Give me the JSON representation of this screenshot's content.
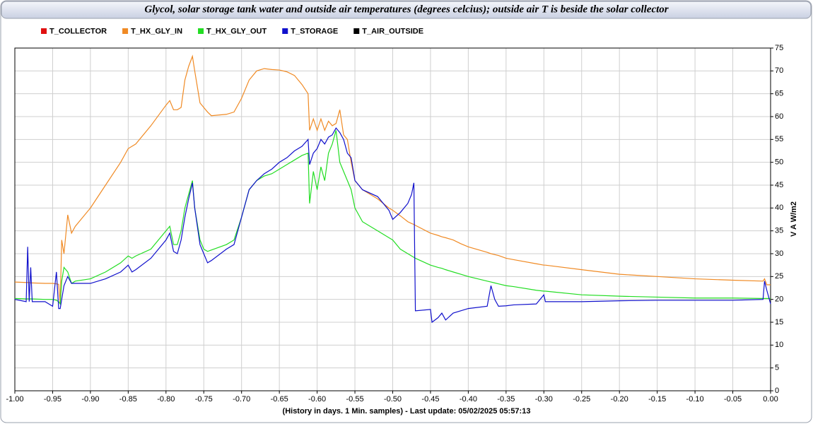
{
  "chart_data": {
    "type": "line",
    "title": "Glycol, solar storage tank water and outside air temperatures (degrees celcius); outside air T is beside the solar collector",
    "x_label": "(History in days. 1 Min. samples) - Last update: 05/02/2025 05:57:13",
    "y_label": "V A W/m2",
    "xlim": [
      -1,
      0
    ],
    "ylim": [
      0,
      75
    ],
    "grid": true,
    "y_axis_side": "right",
    "legend_position": "top",
    "xticks": [
      {
        "value": -1,
        "label": "-1.00"
      },
      -0.95,
      {
        "value": -0.9,
        "label": "-0.90"
      },
      -0.85,
      {
        "value": -0.8,
        "label": "-0.80"
      },
      -0.75,
      {
        "value": -0.7,
        "label": "-0.70"
      },
      -0.65,
      {
        "value": -0.6,
        "label": "-0.60"
      },
      -0.55,
      {
        "value": -0.5,
        "label": "-0.50"
      },
      -0.45,
      {
        "value": -0.4,
        "label": "-0.40"
      },
      -0.35,
      {
        "value": -0.3,
        "label": "-0.30"
      },
      -0.25,
      {
        "value": -0.2,
        "label": "-0.20"
      },
      -0.15,
      {
        "value": -0.1,
        "label": "-0.10"
      },
      -0.05,
      {
        "value": 0,
        "label": "0.00"
      }
    ],
    "yticks": [
      0,
      5,
      10,
      15,
      20,
      25,
      30,
      35,
      40,
      45,
      50,
      55,
      60,
      65,
      70,
      75
    ],
    "x": [
      -1,
      -0.985,
      -0.983,
      -0.981,
      -0.979,
      -0.977,
      -0.96,
      -0.95,
      -0.945,
      -0.942,
      -0.94,
      -0.938,
      -0.935,
      -0.93,
      -0.925,
      -0.92,
      -0.9,
      -0.88,
      -0.86,
      -0.85,
      -0.845,
      -0.84,
      -0.82,
      -0.8,
      -0.795,
      -0.79,
      -0.785,
      -0.78,
      -0.775,
      -0.77,
      -0.765,
      -0.762,
      -0.755,
      -0.75,
      -0.745,
      -0.74,
      -0.72,
      -0.71,
      -0.7,
      -0.69,
      -0.68,
      -0.67,
      -0.66,
      -0.65,
      -0.64,
      -0.63,
      -0.62,
      -0.612,
      -0.61,
      -0.605,
      -0.6,
      -0.595,
      -0.59,
      -0.585,
      -0.58,
      -0.575,
      -0.57,
      -0.565,
      -0.56,
      -0.555,
      -0.55,
      -0.54,
      -0.52,
      -0.505,
      -0.5,
      -0.49,
      -0.48,
      -0.475,
      -0.472,
      -0.47,
      -0.45,
      -0.448,
      -0.44,
      -0.435,
      -0.43,
      -0.42,
      -0.41,
      -0.4,
      -0.375,
      -0.37,
      -0.365,
      -0.36,
      -0.35,
      -0.34,
      -0.31,
      -0.3,
      -0.298,
      -0.25,
      -0.2,
      -0.15,
      -0.1,
      -0.05,
      -0.01,
      -0.008,
      -0.005,
      0
    ],
    "series": [
      {
        "name": "T_COLLECTOR",
        "color": "#e01010",
        "values": [
          null,
          null,
          null,
          null,
          null,
          null,
          null,
          null,
          null,
          null,
          null,
          null,
          null,
          null,
          null,
          null,
          null,
          null,
          null,
          null,
          null,
          null,
          null,
          null,
          null,
          null,
          null,
          null,
          null,
          null,
          null,
          null,
          null,
          null,
          null,
          null,
          null,
          null,
          null,
          null,
          null,
          null,
          null,
          null,
          null,
          null,
          null,
          null,
          null,
          null,
          null,
          null,
          null,
          null,
          null,
          null,
          null,
          null,
          null,
          null,
          null,
          null,
          null,
          null,
          null,
          null,
          null,
          null,
          null,
          null,
          null,
          null,
          null,
          null,
          null,
          null,
          null,
          null,
          null,
          null,
          null,
          null,
          null,
          null,
          null,
          null,
          null,
          null,
          null,
          null,
          null,
          null,
          null,
          null,
          null,
          null
        ]
      },
      {
        "name": "T_HX_GLY_IN",
        "color": "#f08a24",
        "values": [
          23.8,
          23.7,
          23.7,
          23.7,
          23.6,
          23.6,
          23.5,
          23.5,
          23.4,
          23.3,
          19,
          33,
          30,
          38.5,
          34.5,
          36,
          40,
          45,
          50,
          53,
          53.5,
          54,
          58,
          62.5,
          63.5,
          61.5,
          61.5,
          62,
          68,
          71,
          73.2,
          70,
          63,
          62,
          61,
          60.2,
          60.5,
          61,
          64,
          68,
          70,
          70.5,
          70.3,
          70.2,
          69.8,
          69,
          67,
          65,
          57,
          59.5,
          57,
          59.5,
          57,
          59,
          58,
          58.5,
          61.5,
          56,
          55,
          50,
          46,
          44,
          42,
          40,
          39.5,
          38.3,
          37,
          36.6,
          36.4,
          36.2,
          34.5,
          34.4,
          34,
          33.7,
          33.5,
          33,
          32.2,
          31.5,
          30.3,
          30,
          29.8,
          29.6,
          29,
          28.7,
          27.8,
          27.5,
          27.5,
          26.5,
          25.5,
          25,
          24.5,
          24.2,
          24,
          24.5,
          23.2,
          23.2
        ]
      },
      {
        "name": "T_HX_GLY_OUT",
        "color": "#22dd22",
        "values": [
          20.2,
          20.1,
          20.1,
          20.1,
          20.1,
          20.1,
          20,
          20,
          19.8,
          19.5,
          19,
          24,
          27,
          26,
          23.5,
          24,
          24.5,
          26,
          28,
          29.5,
          29,
          29.5,
          31,
          35,
          36,
          32,
          32,
          35,
          40,
          43,
          46,
          40,
          33,
          31,
          30.5,
          30.8,
          32,
          33,
          38,
          44,
          46,
          47,
          47.5,
          48.5,
          49.5,
          50.5,
          51.5,
          52,
          41,
          48,
          44,
          49,
          46,
          52,
          54,
          57,
          50,
          48,
          46,
          44,
          40,
          37,
          35,
          33.5,
          33,
          31,
          30,
          29.5,
          29.2,
          29,
          27.5,
          27.4,
          27,
          26.8,
          26.5,
          26,
          25.5,
          25,
          24,
          23.8,
          23.6,
          23.4,
          23,
          22.8,
          22,
          21.8,
          21.8,
          21,
          20.7,
          20.5,
          20.3,
          20.3,
          20.2,
          20.2,
          20.2,
          20.2
        ]
      },
      {
        "name": "T_STORAGE",
        "color": "#1010cc",
        "values": [
          20,
          19.5,
          31.5,
          19.5,
          27,
          19.5,
          19.5,
          18.5,
          26,
          18,
          18,
          20,
          23,
          25,
          23.5,
          23.5,
          23.5,
          24.5,
          26,
          27.5,
          26,
          26.5,
          29,
          33,
          34.5,
          30.5,
          30,
          33,
          38,
          42,
          45.5,
          40,
          32,
          30,
          28,
          28.5,
          31,
          32,
          38,
          44,
          46,
          47.5,
          48.5,
          50,
          51,
          52.5,
          53.5,
          55,
          49.5,
          52,
          53,
          55,
          54,
          55.5,
          56,
          57.5,
          56.5,
          55,
          52,
          51,
          46,
          44,
          42.5,
          39.5,
          37.5,
          39,
          41,
          43,
          45.5,
          17.5,
          17.8,
          15,
          16,
          17,
          15.5,
          17,
          17.5,
          18,
          18.5,
          23,
          20,
          18.5,
          18.6,
          18.8,
          19,
          21,
          19.5,
          19.5,
          19.7,
          19.8,
          19.8,
          19.8,
          20,
          24,
          22,
          19
        ]
      },
      {
        "name": "T_AIR_OUTSIDE",
        "color": "#000000",
        "values": [
          null,
          null,
          null,
          null,
          null,
          null,
          null,
          null,
          null,
          null,
          null,
          null,
          null,
          null,
          null,
          null,
          null,
          null,
          null,
          null,
          null,
          null,
          null,
          null,
          null,
          null,
          null,
          null,
          null,
          null,
          null,
          null,
          null,
          null,
          null,
          null,
          null,
          null,
          null,
          null,
          null,
          null,
          null,
          null,
          null,
          null,
          null,
          null,
          null,
          null,
          null,
          null,
          null,
          null,
          null,
          null,
          null,
          null,
          null,
          null,
          null,
          null,
          null,
          null,
          null,
          null,
          null,
          null,
          null,
          null,
          null,
          null,
          null,
          null,
          null,
          null,
          null,
          null,
          null,
          null,
          null,
          null,
          null,
          null,
          null,
          null,
          null,
          null,
          null,
          null,
          null,
          null,
          null,
          null,
          null,
          null
        ]
      }
    ]
  }
}
